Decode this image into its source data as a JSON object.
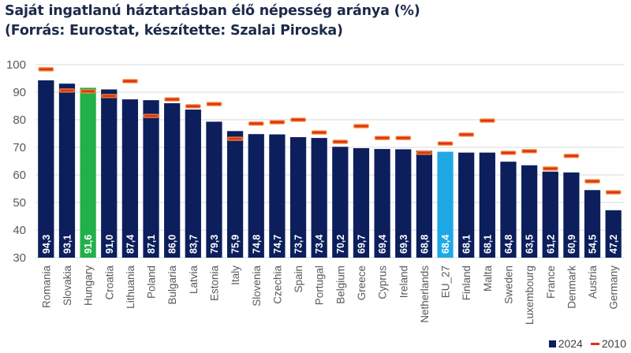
{
  "title": {
    "line1": "Saját ingatlanú háztartásban élő népesség aránya (%)",
    "line2": "(Forrás: Eurostat, készítette: Szalai Piroska)"
  },
  "legend": {
    "series_2024": "2024",
    "series_2010": "2010"
  },
  "colors": {
    "bar_default": "#0c1f5c",
    "bar_hungary": "#22b04b",
    "bar_eu27": "#1fa8e6",
    "marker_2010_fill": "#e0301e",
    "marker_2010_border": "#f08a2c",
    "grid": "#d9d9d9"
  },
  "chart_data": {
    "type": "bar",
    "title": "Saját ingatlanú háztartásban élő népesség aránya (%)",
    "subtitle": "(Forrás: Eurostat, készítette: Szalai Piroska)",
    "xlabel": "",
    "ylabel": "",
    "ylim": [
      30,
      100
    ],
    "yticks": [
      30,
      40,
      50,
      60,
      70,
      80,
      90,
      100
    ],
    "grid": true,
    "legend_position": "bottom-right",
    "categories": [
      "Romania",
      "Slovakia",
      "Hungary",
      "Croatia",
      "Lithuania",
      "Poland",
      "Bulgaria",
      "Latvia",
      "Estonia",
      "Italy",
      "Slovenia",
      "Czechia",
      "Spain",
      "Portugal",
      "Belgium",
      "Greece",
      "Cyprus",
      "Ireland",
      "Netherlands",
      "EU_27",
      "Finland",
      "Malta",
      "Sweden",
      "Luxembourg",
      "France",
      "Denmark",
      "Austria",
      "Germany"
    ],
    "highlight": {
      "Hungary": "bar_hungary",
      "EU_27": "bar_eu27"
    },
    "series": [
      {
        "name": "2024",
        "kind": "bar",
        "values": [
          94.3,
          93.1,
          91.6,
          91.0,
          87.4,
          87.1,
          86.0,
          83.7,
          79.3,
          75.9,
          74.8,
          74.7,
          73.7,
          73.4,
          70.2,
          69.7,
          69.4,
          69.3,
          68.8,
          68.4,
          68.1,
          68.1,
          64.8,
          63.5,
          61.2,
          60.9,
          54.5,
          47.2
        ],
        "labels": [
          "94,3",
          "93,1",
          "91,6",
          "91,0",
          "87,4",
          "87,1",
          "86,0",
          "83,7",
          "79,3",
          "75,9",
          "74,8",
          "74,7",
          "73,7",
          "73,4",
          "70,2",
          "69,7",
          "69,4",
          "69,3",
          "68,8",
          "68,4",
          "68,1",
          "68,1",
          "64,8",
          "63,5",
          "61,2",
          "60,9",
          "54,5",
          "47,2"
        ]
      },
      {
        "name": "2010",
        "kind": "marker",
        "values": [
          98.3,
          90.6,
          90.3,
          88.6,
          94.0,
          81.4,
          87.4,
          84.9,
          85.7,
          73.1,
          78.6,
          79.1,
          80.0,
          75.4,
          72.0,
          77.7,
          73.4,
          73.4,
          68.0,
          71.4,
          74.6,
          79.7,
          68.0,
          68.6,
          62.3,
          66.9,
          57.7,
          53.7
        ]
      }
    ]
  }
}
